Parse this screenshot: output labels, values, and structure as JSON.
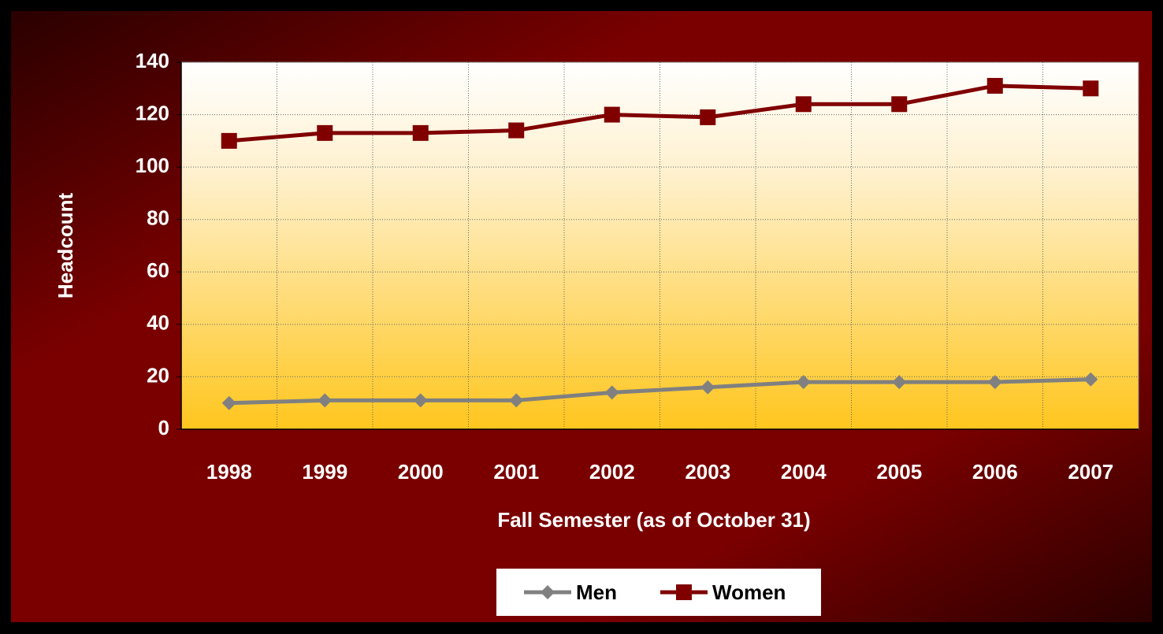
{
  "chart_data": {
    "type": "line",
    "x_label": "Fall Semester (as of October 31)",
    "y_label": "Headcount",
    "categories": [
      "1998",
      "1999",
      "2000",
      "2001",
      "2002",
      "2003",
      "2004",
      "2005",
      "2006",
      "2007"
    ],
    "series": [
      {
        "name": "Men",
        "color": "#808080",
        "marker": "diamond",
        "values": [
          10,
          11,
          11,
          11,
          14,
          16,
          18,
          18,
          18,
          19
        ]
      },
      {
        "name": "Women",
        "color": "#800000",
        "marker": "square",
        "values": [
          110,
          113,
          113,
          114,
          120,
          119,
          124,
          124,
          131,
          130
        ]
      }
    ],
    "ylim": [
      0,
      140
    ],
    "yticks": [
      0,
      20,
      40,
      60,
      80,
      100,
      120,
      140
    ],
    "grid": true,
    "legend": "bottom"
  }
}
